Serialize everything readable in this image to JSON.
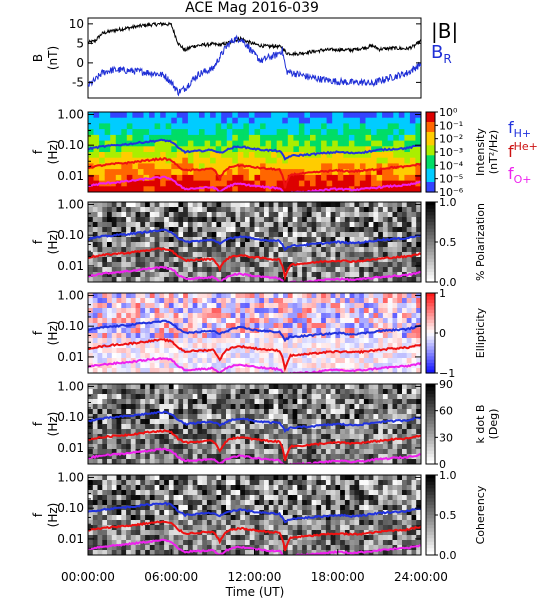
{
  "title": "ACE Mag 2016-039",
  "colors": {
    "bmag": "#000000",
    "br": "#1f2fd6",
    "fH": "#2233dd",
    "fHe": "#ee1111",
    "fO": "#ee22ee"
  },
  "chart_data": [
    {
      "type": "line",
      "panel": "field",
      "ylabel": "B",
      "yunit": "(nT)",
      "ylim": [
        -9,
        11.5
      ],
      "yticks": [
        "10",
        "5",
        "0",
        "-5"
      ],
      "x_hours": [
        0,
        0.5,
        1,
        1.5,
        2,
        3,
        4,
        5,
        5.5,
        6,
        6.5,
        7,
        7.5,
        8,
        9,
        9.5,
        10,
        10.5,
        11,
        11.5,
        12,
        12.5,
        13,
        13.5,
        14,
        14.3,
        15,
        16,
        17,
        18,
        19,
        20,
        20.5,
        21,
        22,
        23,
        23.5,
        24
      ],
      "series": [
        {
          "name": "|B|",
          "values": [
            5.2,
            5.6,
            7.5,
            8,
            8.4,
            9,
            9.6,
            9.9,
            10,
            9.8,
            5,
            3.2,
            4.2,
            4.5,
            4.8,
            4.6,
            5,
            5.6,
            6.3,
            5.4,
            4.8,
            4.4,
            4.2,
            4.3,
            4,
            2.5,
            2.3,
            2.8,
            3.3,
            3.4,
            3.3,
            3.9,
            4.4,
            3.5,
            3.8,
            3.6,
            4.3,
            5.7
          ]
        },
        {
          "name": "B",
          "subscript": "R",
          "values": [
            -5.8,
            -4.5,
            -2.6,
            -2,
            -1.8,
            -2,
            -2.3,
            -2.8,
            -3.2,
            -5,
            -7.5,
            -6.5,
            -4.5,
            -2.8,
            -1.5,
            1.5,
            4.3,
            6,
            6.2,
            4.4,
            2,
            0.5,
            1.4,
            1.9,
            3.2,
            -2.2,
            -2.8,
            -3.7,
            -4.3,
            -4.8,
            -5,
            -5,
            -5.4,
            -4.6,
            -3.6,
            -2.6,
            -1.5,
            -0.2
          ]
        }
      ]
    },
    {
      "type": "heatmap",
      "panel": "intensity",
      "ylabel": "f",
      "yunit": "(Hz)",
      "ylim": [
        0.003,
        1.2
      ],
      "yticks": [
        "1.00",
        "0.10",
        "0.01"
      ],
      "colorbar": {
        "label": "Intensity",
        "unit": "(nT²/Hz)",
        "ticks": [
          "10⁰",
          "10⁻¹",
          "10⁻²",
          "10⁻³",
          "10⁻⁴",
          "10⁻⁵",
          "10⁻⁶"
        ]
      }
    },
    {
      "type": "heatmap",
      "panel": "polarization",
      "ylabel": "f",
      "yunit": "(Hz)",
      "ylim": [
        0.003,
        1.2
      ],
      "yticks": [
        "1.00",
        "0.10",
        "0.01"
      ],
      "colorbar": {
        "label": "% Polarization",
        "unit": "",
        "ticks": [
          "1.0",
          "0.5",
          "0.0"
        ]
      }
    },
    {
      "type": "heatmap",
      "panel": "ellipticity",
      "ylabel": "f",
      "yunit": "(Hz)",
      "ylim": [
        0.003,
        1.2
      ],
      "yticks": [
        "1.00",
        "0.10",
        "0.01"
      ],
      "colorbar": {
        "label": "Ellipticity",
        "unit": "",
        "ticks": [
          "1",
          "0",
          "−1"
        ]
      }
    },
    {
      "type": "heatmap",
      "panel": "kdotb",
      "ylabel": "f",
      "yunit": "(Hz)",
      "ylim": [
        0.003,
        1.2
      ],
      "yticks": [
        "1.00",
        "0.10",
        "0.01"
      ],
      "colorbar": {
        "label": "k dot B",
        "unit": "(Deg)",
        "ticks": [
          "90",
          "60",
          "30",
          "0"
        ]
      }
    },
    {
      "type": "heatmap",
      "panel": "coherency",
      "ylabel": "f",
      "yunit": "(Hz)",
      "ylim": [
        0.003,
        1.2
      ],
      "yticks": [
        "1.00",
        "0.10",
        "0.01"
      ],
      "colorbar": {
        "label": "Coherency",
        "unit": "",
        "ticks": [
          "1.0",
          "0.5",
          "0.0"
        ]
      }
    }
  ],
  "gyro_lines": {
    "x_hours": [
      0,
      1,
      2,
      3,
      4,
      5,
      5.5,
      6,
      6.5,
      7,
      8,
      9,
      9.5,
      10,
      10.5,
      11,
      12,
      13,
      13.8,
      14.2,
      14.6,
      15,
      16,
      17,
      18,
      19,
      20,
      21,
      22,
      23,
      24
    ],
    "fH": [
      0.075,
      0.09,
      0.1,
      0.11,
      0.125,
      0.14,
      0.145,
      0.13,
      0.08,
      0.06,
      0.065,
      0.07,
      0.055,
      0.07,
      0.085,
      0.09,
      0.075,
      0.068,
      0.065,
      0.035,
      0.045,
      0.046,
      0.05,
      0.055,
      0.06,
      0.055,
      0.06,
      0.07,
      0.075,
      0.08,
      0.1
    ],
    "fHe": [
      0.019,
      0.022,
      0.025,
      0.027,
      0.031,
      0.035,
      0.036,
      0.032,
      0.02,
      0.015,
      0.016,
      0.017,
      0.008,
      0.017,
      0.021,
      0.022,
      0.019,
      0.017,
      0.016,
      0.004,
      0.011,
      0.0115,
      0.0125,
      0.014,
      0.015,
      0.014,
      0.015,
      0.017,
      0.019,
      0.02,
      0.025
    ],
    "fO": [
      0.0047,
      0.0056,
      0.0062,
      0.0068,
      0.0078,
      0.0088,
      0.009,
      0.008,
      0.005,
      0.0038,
      0.004,
      0.0043,
      0.003,
      0.0043,
      0.0053,
      0.0055,
      0.0047,
      0.0042,
      0.004,
      0.0025,
      0.0029,
      0.003,
      0.0031,
      0.0035,
      0.0038,
      0.0035,
      0.0038,
      0.0043,
      0.0047,
      0.005,
      0.0062
    ]
  },
  "legend": {
    "field": {
      "bmag": "|B|",
      "br_base": "B",
      "br_sub": "R"
    },
    "freq": {
      "h_base": "f",
      "h_sub": "H+",
      "he_base": "f",
      "he_sup": "He+",
      "o_base": "f",
      "o_sub": "O+"
    }
  },
  "xaxis": {
    "ticks": [
      "00:00:00",
      "06:00:00",
      "12:00:00",
      "18:00:00",
      "24:00:00"
    ],
    "label": "Time (UT)",
    "range_hours": [
      0,
      24
    ]
  }
}
